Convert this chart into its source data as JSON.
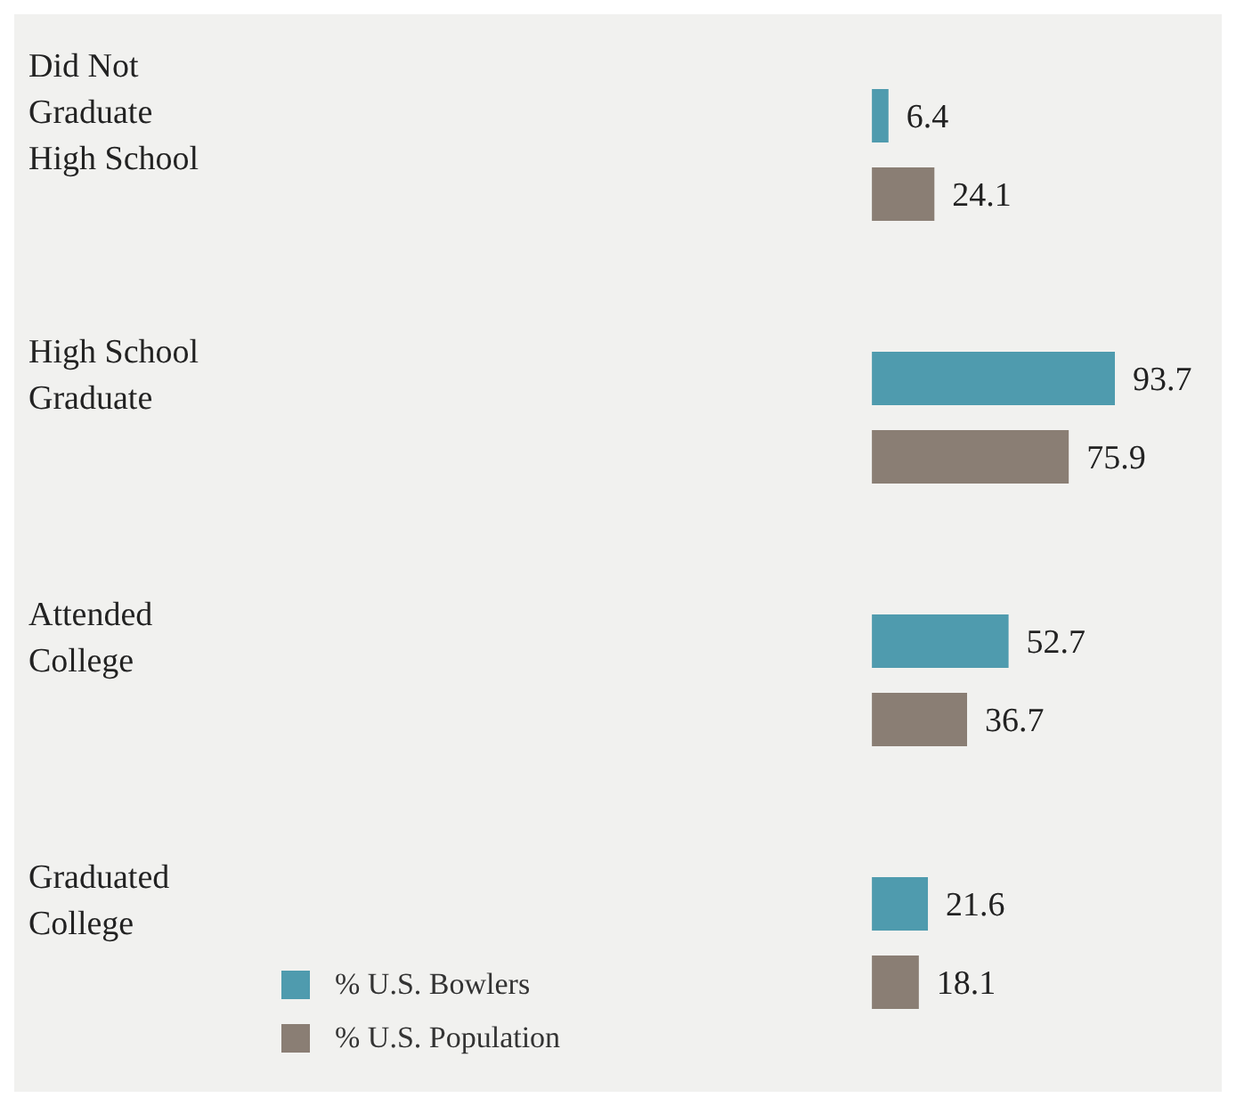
{
  "chart_data": {
    "type": "bar",
    "orientation": "horizontal",
    "categories": [
      "Did Not Graduate High School",
      "High School Graduate",
      "Attended College",
      "Graduated College"
    ],
    "series": [
      {
        "name": "% U.S. Bowlers",
        "color": "#4f9bae",
        "values": [
          6.4,
          93.7,
          52.7,
          21.6
        ]
      },
      {
        "name": "% U.S. Population",
        "color": "#8a7e74",
        "values": [
          24.1,
          75.9,
          36.7,
          18.1
        ]
      }
    ],
    "data_labels": true,
    "legend": "bottom left",
    "grid": false
  }
}
